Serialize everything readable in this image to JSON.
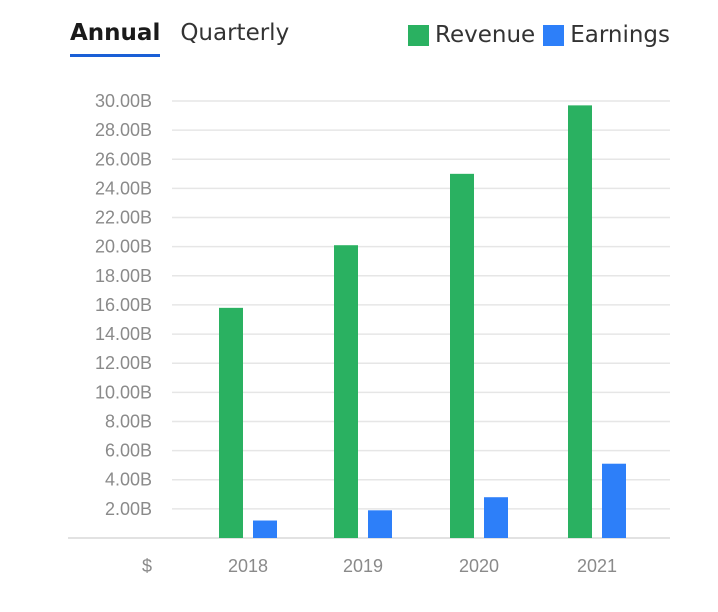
{
  "tabs": [
    {
      "label": "Annual",
      "active": true
    },
    {
      "label": "Quarterly",
      "active": false
    }
  ],
  "currency_symbol": "$",
  "colors": {
    "revenue": "#2ab161",
    "earnings": "#2d7ff9",
    "gridline": "#e6e6e6",
    "tab_underline": "#1a5fd6"
  },
  "chart_data": {
    "type": "bar",
    "categories": [
      "2018",
      "2019",
      "2020",
      "2021"
    ],
    "series": [
      {
        "name": "Revenue",
        "values": [
          15.8,
          20.1,
          25.0,
          29.7
        ]
      },
      {
        "name": "Earnings",
        "values": [
          1.2,
          1.9,
          2.8,
          5.1
        ]
      }
    ],
    "yticks": [
      2,
      4,
      6,
      8,
      10,
      12,
      14,
      16,
      18,
      20,
      22,
      24,
      26,
      28,
      30
    ],
    "ytick_labels": [
      "2.00B",
      "4.00B",
      "6.00B",
      "8.00B",
      "10.00B",
      "12.00B",
      "14.00B",
      "16.00B",
      "18.00B",
      "20.00B",
      "22.00B",
      "24.00B",
      "26.00B",
      "28.00B",
      "30.00B"
    ],
    "ylim": [
      0,
      30
    ],
    "unit": "B",
    "grid": true,
    "legend_position": "top-right"
  }
}
